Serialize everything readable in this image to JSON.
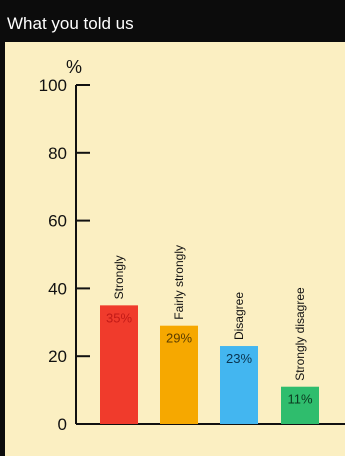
{
  "header": {
    "title": "What you told us"
  },
  "chart_data": {
    "type": "bar",
    "title": "What you told us",
    "ylabel": "%",
    "xlabel": "",
    "ylim": [
      0,
      100
    ],
    "yticks": [
      0,
      20,
      40,
      60,
      80,
      100
    ],
    "grid": false,
    "categories": [
      "Strongly",
      "Fairly strongly",
      "Disagree",
      "Strongly disagree"
    ],
    "values": [
      35,
      29,
      23,
      11
    ],
    "value_labels": [
      "35%",
      "29%",
      "23%",
      "11%"
    ],
    "colors": [
      "#f03b2c",
      "#f6a800",
      "#43b6f0",
      "#2fbd6d"
    ],
    "value_label_colors": [
      "#c21a17",
      "#5a3d00",
      "#0a3550",
      "#0b3a20"
    ]
  }
}
